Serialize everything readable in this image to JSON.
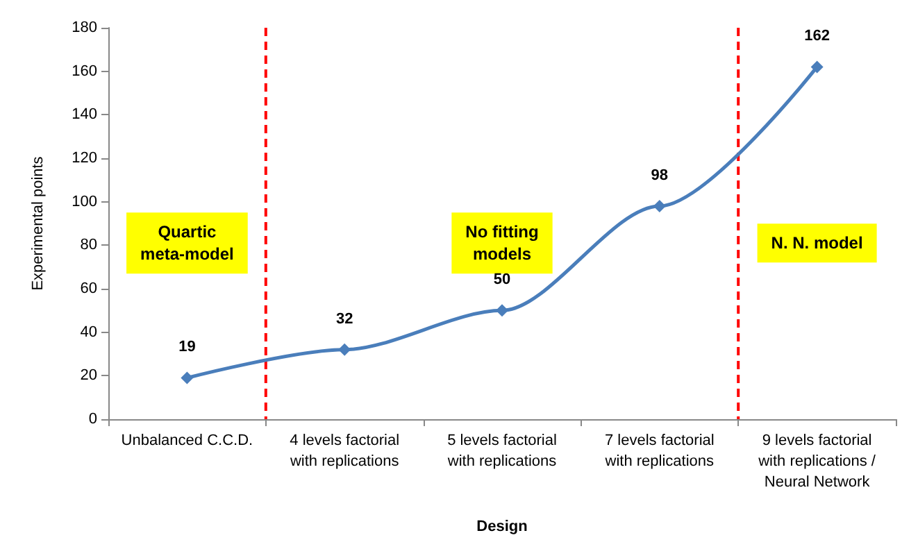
{
  "chart_data": {
    "type": "line",
    "xlabel": "Design",
    "ylabel": "Experimental points",
    "categories": [
      "Unbalanced C.C.D.",
      "4 levels factorial\nwith replications",
      "5 levels factorial\nwith replications",
      "7 levels factorial\nwith replications",
      "9 levels factorial\nwith replications /\nNeural Network"
    ],
    "values": [
      19,
      32,
      50,
      98,
      162
    ],
    "color": "#4a7ebb",
    "marker": "diamond",
    "data_labels": true,
    "ylim": [
      0,
      180
    ],
    "yticks": [
      0,
      20,
      40,
      60,
      80,
      100,
      120,
      140,
      160,
      180
    ],
    "grid": false,
    "annotations": [
      "Quartic\nmeta-model",
      "No fitting\nmodels",
      "N. N. model"
    ]
  }
}
